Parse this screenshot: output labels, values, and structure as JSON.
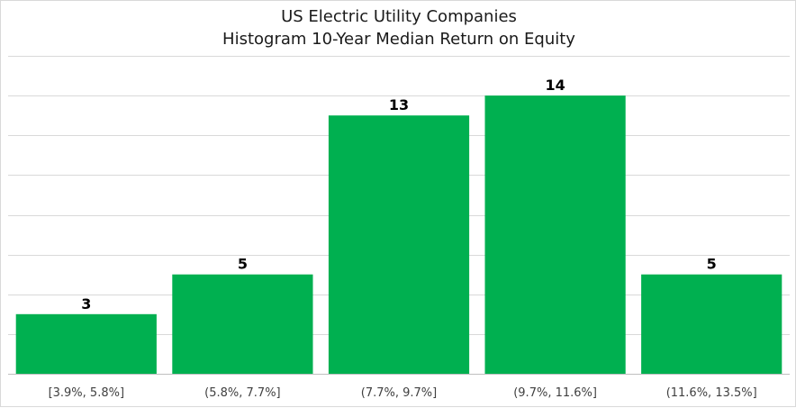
{
  "chart_data": {
    "type": "bar",
    "title": [
      "US Electric Utility Companies",
      "Histogram 10-Year Median Return on Equity"
    ],
    "categories": [
      "[3.9%, 5.8%]",
      "(5.8%, 7.7%]",
      "(7.7%, 9.7%]",
      "(9.7%, 11.6%]",
      "(11.6%, 13.5%]"
    ],
    "values": [
      3,
      5,
      13,
      14,
      5
    ],
    "data_labels": [
      "3",
      "5",
      "13",
      "14",
      "5"
    ],
    "ylim": [
      0,
      16
    ],
    "y_major_step": 2,
    "grid": true,
    "legend": "none",
    "colors": {
      "bar": "#00b050",
      "grid": "#d9d9d9",
      "axis": "#bfbfbf",
      "label": "#000000",
      "tick": "#404040"
    }
  }
}
